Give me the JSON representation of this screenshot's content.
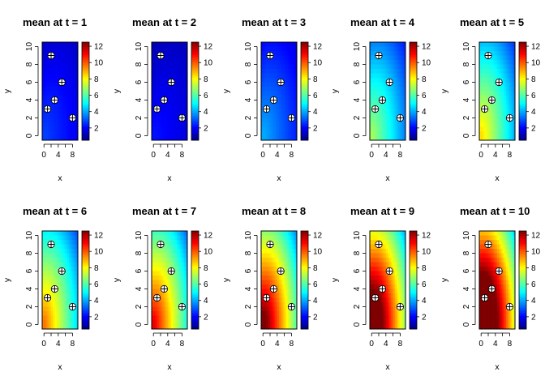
{
  "chart_data": {
    "type": "heatmap",
    "colorbar": {
      "ticks": [
        2,
        4,
        6,
        8,
        10,
        12
      ],
      "range": [
        0.5,
        12.5
      ]
    },
    "colormap": [
      "#00007f",
      "#0000ff",
      "#007fff",
      "#00ffff",
      "#7fff7f",
      "#ffff00",
      "#ff7f00",
      "#ff0000",
      "#7f0000"
    ],
    "axes": {
      "xlabel": "x",
      "ylabel": "y",
      "xlim": [
        -0.5,
        9.5
      ],
      "ylim": [
        -0.5,
        10.5
      ],
      "xticks": [
        0,
        4,
        8
      ],
      "xticks_minor": [
        2,
        6
      ],
      "yticks": [
        0,
        2,
        4,
        6,
        8,
        10
      ]
    },
    "points": [
      {
        "x": 2,
        "y": 9
      },
      {
        "x": 5,
        "y": 6
      },
      {
        "x": 3,
        "y": 4
      },
      {
        "x": 1,
        "y": 3
      },
      {
        "x": 8,
        "y": 2
      }
    ],
    "panels": [
      {
        "title": "mean at t = 1",
        "level": 1.5
      },
      {
        "title": "mean at t = 2",
        "level": 1.2
      },
      {
        "title": "mean at t = 3",
        "level": 2.2
      },
      {
        "title": "mean at t = 4",
        "level": 3.8
      },
      {
        "title": "mean at t = 5",
        "level": 4.6
      },
      {
        "title": "mean at t = 6",
        "level": 5.3
      },
      {
        "title": "mean at t = 7",
        "level": 6.2
      },
      {
        "title": "mean at t = 8",
        "level": 7.2
      },
      {
        "title": "mean at t = 9",
        "level": 8.3
      },
      {
        "title": "mean at t = 10",
        "level": 9.4
      }
    ]
  }
}
